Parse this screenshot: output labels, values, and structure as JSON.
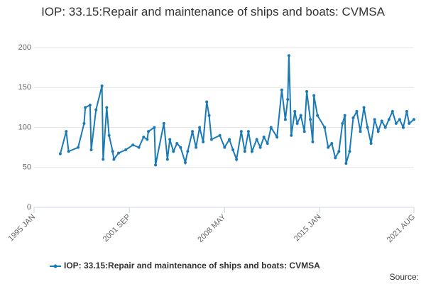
{
  "chart_data": {
    "type": "line",
    "title": "IOP: 33.15:Repair and maintenance of ships and boats: CVMSA",
    "x": [
      "1996 NOV",
      "1997 APR",
      "1997 JUN",
      "1998 FEB",
      "1998 JUL",
      "1998 AUG",
      "1998 DEC",
      "1999 JAN",
      "1999 MAY",
      "1999 OCT",
      "1999 NOV",
      "2000 FEB",
      "2000 APR",
      "2000 JUL",
      "2000 AUG",
      "2000 DEC",
      "2001 JUN",
      "2001 DEC",
      "2002 MAY",
      "2002 SEP",
      "2002 DEC",
      "2003 JAN",
      "2003 JUN",
      "2003 JUL",
      "2004 FEB",
      "2004 MAY",
      "2004 JUL",
      "2004 OCT",
      "2005 JAN",
      "2005 APR",
      "2005 AUG",
      "2005 OCT",
      "2006 FEB",
      "2006 MAY",
      "2006 AUG",
      "2006 NOV",
      "2007 FEB",
      "2007 APR",
      "2007 JUN",
      "2008 JAN",
      "2008 MAY",
      "2008 SEP",
      "2008 DEC",
      "2009 MAR",
      "2009 JUL",
      "2009 OCT",
      "2010 JAN",
      "2010 APR",
      "2010 AUG",
      "2010 NOV",
      "2011 FEB",
      "2011 MAY",
      "2011 AUG",
      "2012 JAN",
      "2012 MAY",
      "2012 AUG",
      "2012 OCT",
      "2012 NOV",
      "2013 JAN",
      "2013 APR",
      "2013 JUN",
      "2013 SEP",
      "2013 DEC",
      "2014 FEB",
      "2014 MAY",
      "2014 JUL",
      "2014 AUG",
      "2014 NOV",
      "2015 MAY",
      "2015 AUG",
      "2015 NOV",
      "2016 FEB",
      "2016 MAY",
      "2016 AUG",
      "2016 OCT",
      "2016 NOV",
      "2017 FEB",
      "2017 MAY",
      "2017 AUG",
      "2017 NOV",
      "2018 FEB",
      "2018 MAY",
      "2018 AUG",
      "2018 NOV",
      "2019 FEB",
      "2019 MAY",
      "2019 AUG",
      "2019 NOV",
      "2020 FEB",
      "2020 MAY",
      "2020 AUG",
      "2020 NOV",
      "2021 FEB",
      "2021 APR",
      "2021 AUG"
    ],
    "series": [
      {
        "name": "IOP: 33.15:Repair and maintenance of ships and boats: CVMSA",
        "color": "#1a7ab5",
        "values": [
          67,
          95,
          70,
          75,
          105,
          125,
          128,
          72,
          122,
          152,
          60,
          125,
          90,
          70,
          60,
          68,
          72,
          78,
          75,
          88,
          85,
          95,
          100,
          53,
          105,
          60,
          85,
          70,
          80,
          75,
          56,
          70,
          95,
          75,
          100,
          82,
          132,
          115,
          85,
          90,
          75,
          85,
          72,
          60,
          95,
          70,
          95,
          70,
          85,
          75,
          88,
          80,
          100,
          88,
          147,
          110,
          135,
          190,
          90,
          120,
          105,
          115,
          95,
          145,
          110,
          82,
          140,
          115,
          100,
          75,
          80,
          62,
          70,
          105,
          115,
          55,
          70,
          112,
          120,
          95,
          125,
          100,
          80,
          110,
          95,
          108,
          100,
          110,
          120,
          105,
          110,
          100,
          120,
          105,
          110
        ]
      }
    ],
    "xlim": [
      "1995 JAN",
      "2021 AUG"
    ],
    "xticks": [
      "1995 JAN",
      "2001 SEP",
      "2008 MAY",
      "2015 JAN",
      "2021 AUG"
    ],
    "ylim": [
      0,
      200
    ],
    "yticks": [
      0,
      50,
      100,
      150,
      200
    ],
    "grid": true,
    "source": "Source:"
  }
}
